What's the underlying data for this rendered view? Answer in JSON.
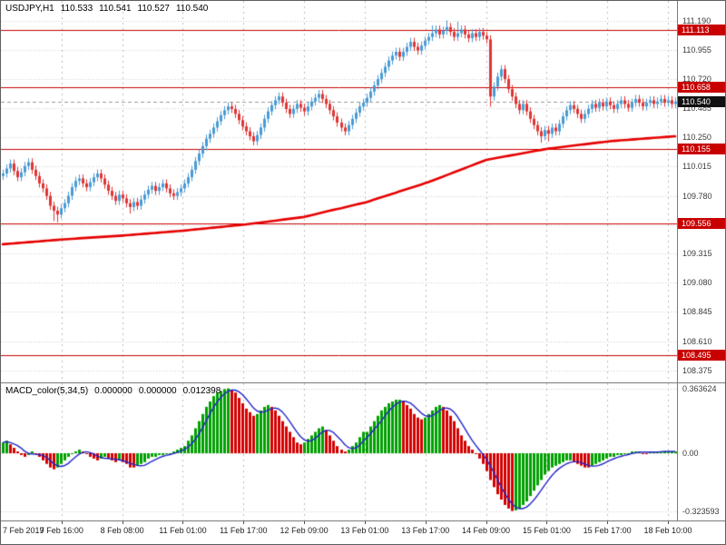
{
  "chart_data": {
    "type": "candlestick_with_macd",
    "symbol": "USDJPY,H1",
    "quote": [
      "110.533",
      "110.541",
      "110.527",
      "110.540"
    ],
    "time_labels": [
      "7 Feb 2019",
      "7 Feb 16:00",
      "8 Feb 08:00",
      "11 Feb 01:00",
      "11 Feb 17:00",
      "12 Feb 09:00",
      "13 Feb 01:00",
      "13 Feb 17:00",
      "14 Feb 09:00",
      "15 Feb 01:00",
      "15 Feb 17:00",
      "18 Feb 10:00"
    ],
    "colors": {
      "up": "#4a9bd5",
      "down": "#e03535",
      "ma": "#e60000",
      "level": "#c80000",
      "hist_up": "#00a000",
      "hist_down": "#d40000",
      "signal": "#2424c8",
      "badge_level": "#c80000",
      "badge_current": "#111111"
    },
    "main": {
      "ylim": [
        108.27,
        111.35
      ],
      "grid": true,
      "price_labels": [
        "111.190",
        "110.955",
        "110.720",
        "110.485",
        "110.250",
        "110.015",
        "109.780",
        "109.545",
        "109.315",
        "109.080",
        "108.845",
        "108.610",
        "108.375"
      ],
      "level_badges": [
        {
          "text": "111.113",
          "value": 111.113
        },
        {
          "text": "110.658",
          "value": 110.658
        },
        {
          "text": "110.155",
          "value": 110.155
        },
        {
          "text": "109.556",
          "value": 109.556
        },
        {
          "text": "108.495",
          "value": 108.495
        }
      ],
      "current": {
        "text": "110.540",
        "value": 110.54
      },
      "wick": 0.03,
      "closes": [
        109.96,
        110.0,
        110.04,
        109.98,
        109.93,
        109.97,
        110.02,
        110.05,
        109.99,
        109.94,
        109.88,
        109.84,
        109.78,
        109.7,
        109.66,
        109.63,
        109.68,
        109.72,
        109.78,
        109.85,
        109.9,
        109.92,
        109.88,
        109.85,
        109.89,
        109.93,
        109.96,
        109.92,
        109.87,
        109.82,
        109.78,
        109.74,
        109.79,
        109.76,
        109.72,
        109.69,
        109.73,
        109.7,
        109.75,
        109.79,
        109.83,
        109.86,
        109.82,
        109.85,
        109.88,
        109.84,
        109.8,
        109.78,
        109.81,
        109.84,
        109.88,
        109.93,
        109.99,
        110.06,
        110.12,
        110.18,
        110.24,
        110.28,
        110.33,
        110.38,
        110.43,
        110.47,
        110.5,
        110.48,
        110.44,
        110.39,
        110.34,
        110.3,
        110.26,
        110.22,
        110.27,
        110.33,
        110.4,
        110.46,
        110.51,
        110.55,
        110.58,
        110.53,
        110.48,
        110.44,
        110.48,
        110.52,
        110.49,
        110.46,
        110.5,
        110.54,
        110.57,
        110.6,
        110.56,
        110.52,
        110.47,
        110.42,
        110.37,
        110.33,
        110.3,
        110.35,
        110.4,
        110.45,
        110.5,
        110.53,
        110.57,
        110.62,
        110.67,
        110.72,
        110.77,
        110.82,
        110.87,
        110.91,
        110.94,
        110.9,
        110.94,
        110.98,
        111.02,
        110.98,
        110.95,
        110.99,
        111.03,
        111.06,
        111.09,
        111.12,
        111.08,
        111.11,
        111.14,
        111.1,
        111.06,
        111.09,
        111.12,
        111.08,
        111.05,
        111.09,
        111.06,
        111.1,
        111.07,
        111.04,
        110.58,
        110.66,
        110.74,
        110.8,
        110.72,
        110.64,
        110.58,
        110.52,
        110.47,
        110.52,
        110.46,
        110.4,
        110.35,
        110.3,
        110.26,
        110.31,
        110.28,
        110.33,
        110.3,
        110.36,
        110.42,
        110.47,
        110.51,
        110.48,
        110.44,
        110.4,
        110.44,
        110.48,
        110.52,
        110.49,
        110.53,
        110.5,
        110.54,
        110.51,
        110.48,
        110.52,
        110.55,
        110.52,
        110.49,
        110.53,
        110.56,
        110.53,
        110.5,
        110.53,
        110.55,
        110.52,
        110.54,
        110.56,
        110.53,
        110.55,
        110.52,
        110.54
      ],
      "high_overrides": {
        "118": 111.15,
        "122": 111.19,
        "125": 111.18
      },
      "low_overrides": {
        "14": 109.58,
        "15": 109.57,
        "35": 109.64,
        "134": 110.5,
        "148": 110.21,
        "150": 110.22
      },
      "ma_anchors": [
        [
          0,
          109.39
        ],
        [
          17,
          109.43
        ],
        [
          33,
          109.46
        ],
        [
          50,
          109.5
        ],
        [
          67,
          109.55
        ],
        [
          83,
          109.61
        ],
        [
          100,
          109.73
        ],
        [
          117,
          109.89
        ],
        [
          133,
          110.07
        ],
        [
          150,
          110.16
        ],
        [
          167,
          110.22
        ],
        [
          185,
          110.26
        ]
      ]
    },
    "macd": {
      "name": "MACD_color(5,34,5)",
      "header_values": [
        "0.000000",
        "0.000000",
        "0.012398"
      ],
      "signal_period": 5,
      "ylim": [
        -0.377,
        0.392
      ],
      "axis_labels": [
        {
          "text": "0.363624",
          "value": 0.363624
        },
        {
          "text": "0.00",
          "value": 0
        },
        {
          "text": "-0.323593",
          "value": -0.323593
        }
      ],
      "values": [
        0.06,
        0.07,
        0.05,
        0.03,
        0.01,
        -0.01,
        -0.02,
        -0.01,
        0.01,
        0.0,
        -0.02,
        -0.04,
        -0.06,
        -0.08,
        -0.09,
        -0.08,
        -0.06,
        -0.04,
        -0.02,
        0.0,
        0.01,
        0.02,
        0.01,
        0.0,
        -0.02,
        -0.03,
        -0.04,
        -0.03,
        -0.02,
        -0.03,
        -0.04,
        -0.05,
        -0.04,
        -0.05,
        -0.06,
        -0.08,
        -0.08,
        -0.07,
        -0.06,
        -0.05,
        -0.03,
        -0.02,
        -0.02,
        -0.01,
        -0.01,
        0.0,
        0.0,
        0.01,
        0.02,
        0.03,
        0.04,
        0.07,
        0.1,
        0.14,
        0.18,
        0.22,
        0.26,
        0.29,
        0.32,
        0.34,
        0.35,
        0.36,
        0.3636,
        0.355,
        0.34,
        0.31,
        0.28,
        0.25,
        0.23,
        0.21,
        0.22,
        0.24,
        0.26,
        0.27,
        0.26,
        0.24,
        0.21,
        0.18,
        0.15,
        0.12,
        0.09,
        0.06,
        0.05,
        0.06,
        0.08,
        0.1,
        0.12,
        0.14,
        0.15,
        0.13,
        0.1,
        0.07,
        0.04,
        0.02,
        0.01,
        0.02,
        0.04,
        0.06,
        0.09,
        0.12,
        0.12,
        0.15,
        0.18,
        0.21,
        0.24,
        0.26,
        0.28,
        0.29,
        0.3,
        0.3,
        0.29,
        0.27,
        0.25,
        0.22,
        0.2,
        0.19,
        0.2,
        0.22,
        0.24,
        0.26,
        0.27,
        0.26,
        0.24,
        0.21,
        0.18,
        0.14,
        0.1,
        0.07,
        0.04,
        0.02,
        0.0,
        -0.03,
        -0.06,
        -0.1,
        -0.15,
        -0.19,
        -0.23,
        -0.26,
        -0.29,
        -0.31,
        -0.3236,
        -0.32,
        -0.31,
        -0.29,
        -0.27,
        -0.24,
        -0.21,
        -0.18,
        -0.15,
        -0.12,
        -0.1,
        -0.08,
        -0.07,
        -0.06,
        -0.05,
        -0.04,
        -0.04,
        -0.05,
        -0.06,
        -0.07,
        -0.08,
        -0.08,
        -0.07,
        -0.06,
        -0.05,
        -0.04,
        -0.03,
        -0.02,
        -0.02,
        -0.01,
        -0.01,
        0.0,
        0.0,
        0.01,
        0.01,
        0.01,
        0.0,
        0.0,
        0.01,
        0.01,
        0.01,
        0.01,
        0.01,
        0.01,
        0.01,
        0.01
      ]
    }
  }
}
